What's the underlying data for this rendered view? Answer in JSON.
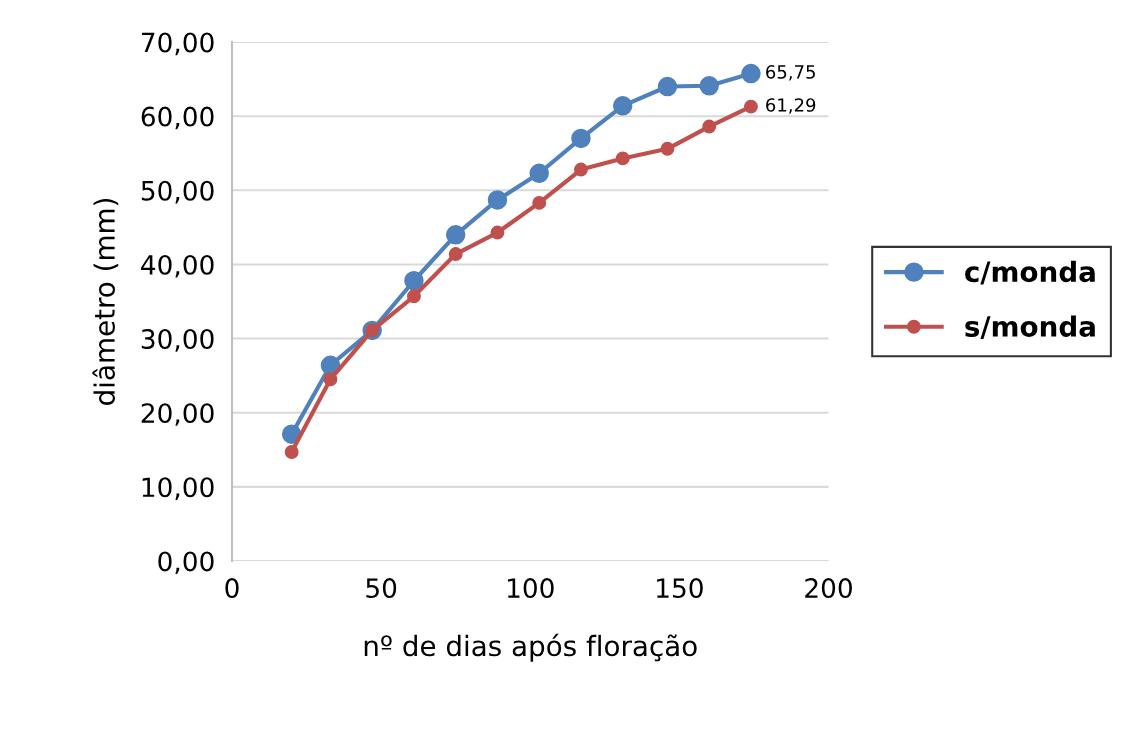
{
  "chart_data": {
    "type": "line",
    "xlabel": "nº de dias após floração",
    "ylabel": "diâmetro (mm)",
    "x": [
      20,
      33,
      47,
      61,
      75,
      89,
      103,
      117,
      131,
      146,
      160,
      174
    ],
    "xlim": [
      0,
      200
    ],
    "xticks": [
      0,
      50,
      100,
      150,
      200
    ],
    "ylim": [
      0,
      70
    ],
    "yticks": [
      {
        "value": 0,
        "label": "0,00"
      },
      {
        "value": 10,
        "label": "10,00"
      },
      {
        "value": 20,
        "label": "20,00"
      },
      {
        "value": 30,
        "label": "30,00"
      },
      {
        "value": 40,
        "label": "40,00"
      },
      {
        "value": 50,
        "label": "50,00"
      },
      {
        "value": 60,
        "label": "60,00"
      },
      {
        "value": 70,
        "label": "70,00"
      }
    ],
    "grid": "y",
    "legend": "right",
    "marker": "circle",
    "line_style": "solid",
    "series": [
      {
        "name": "c/monda",
        "color": "#4f81bd",
        "values": [
          17.1,
          26.4,
          31.1,
          37.8,
          44.0,
          48.7,
          52.3,
          57.0,
          61.4,
          64.0,
          64.1,
          65.75
        ],
        "value_labels": [
          null,
          null,
          null,
          null,
          null,
          null,
          null,
          null,
          null,
          null,
          null,
          "65,75"
        ]
      },
      {
        "name": "s/monda",
        "color": "#c0504d",
        "values": [
          14.7,
          24.5,
          31.1,
          35.7,
          41.4,
          44.3,
          48.3,
          52.8,
          54.3,
          55.6,
          58.6,
          61.29
        ],
        "value_labels": [
          null,
          null,
          null,
          null,
          null,
          null,
          null,
          null,
          null,
          null,
          null,
          "61,29"
        ]
      }
    ]
  }
}
